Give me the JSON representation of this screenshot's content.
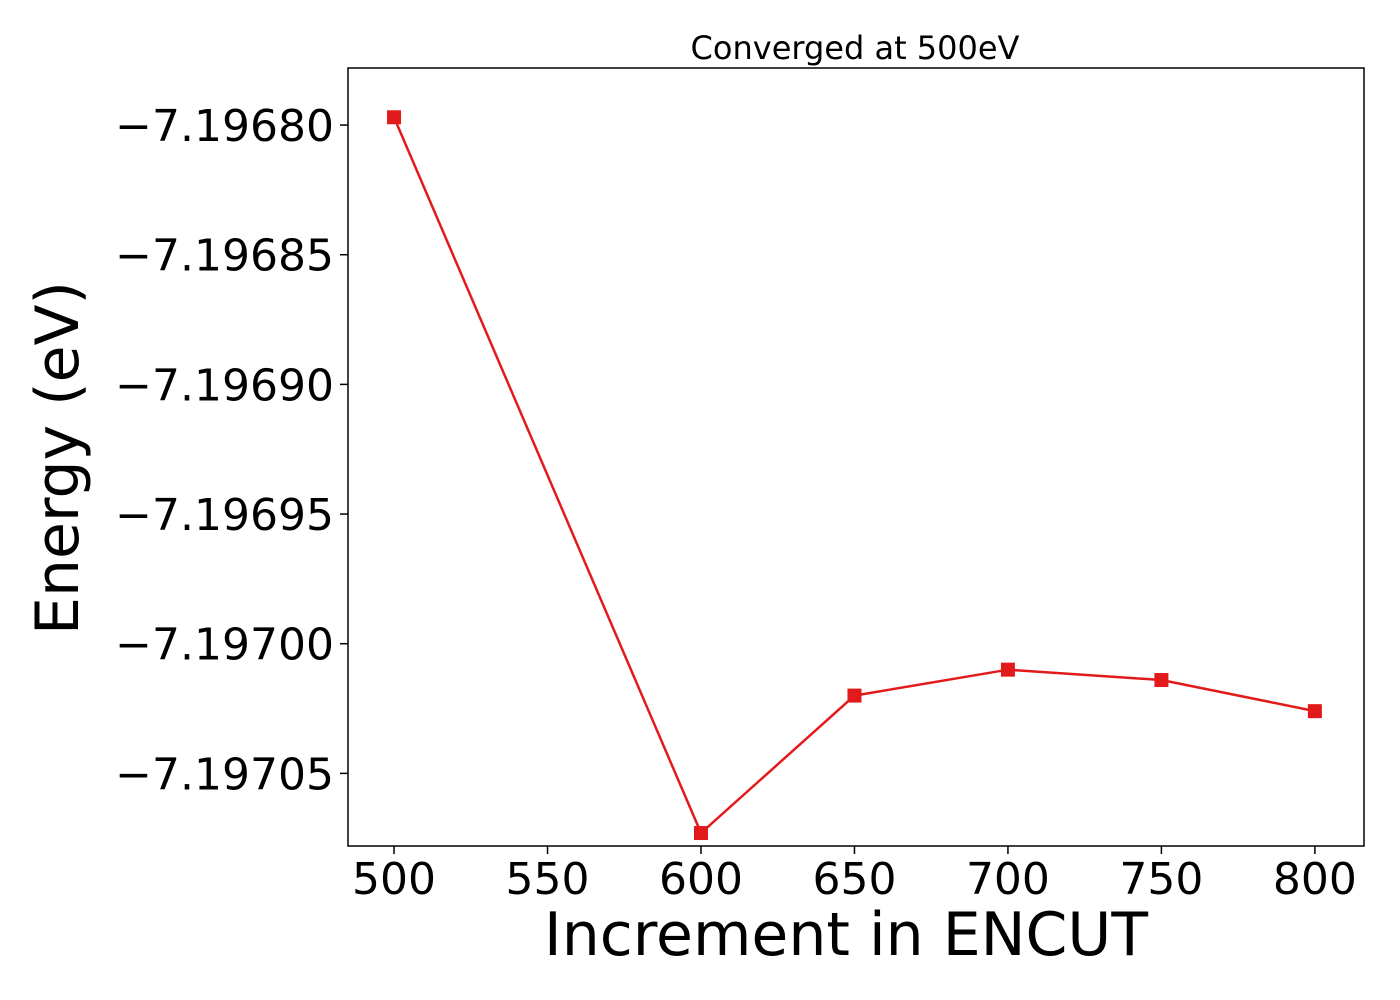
{
  "chart_data": {
    "type": "line",
    "title": "Converged at 500eV",
    "xlabel": "Increment in ENCUT",
    "ylabel": "Energy (eV)",
    "x": [
      500,
      600,
      650,
      700,
      750,
      800
    ],
    "xticks": [
      500,
      550,
      600,
      650,
      700,
      750,
      800
    ],
    "xtick_labels": [
      "500",
      "550",
      "600",
      "650",
      "700",
      "750",
      "800"
    ],
    "xlim": [
      485,
      816
    ],
    "yticks": [
      -7.1968,
      -7.19685,
      -7.1969,
      -7.19695,
      -7.197,
      -7.19705
    ],
    "ytick_labels": [
      "−7.19680",
      "−7.19685",
      "−7.19690",
      "−7.19695",
      "−7.19700",
      "−7.19705"
    ],
    "ylim": [
      -7.197078,
      -7.196778
    ],
    "grid": false,
    "series": [
      {
        "values": [
          -7.196797,
          -7.197073,
          -7.19702,
          -7.19701,
          -7.197014,
          -7.197026
        ],
        "color": "#e31a1c",
        "marker": "square"
      }
    ]
  }
}
